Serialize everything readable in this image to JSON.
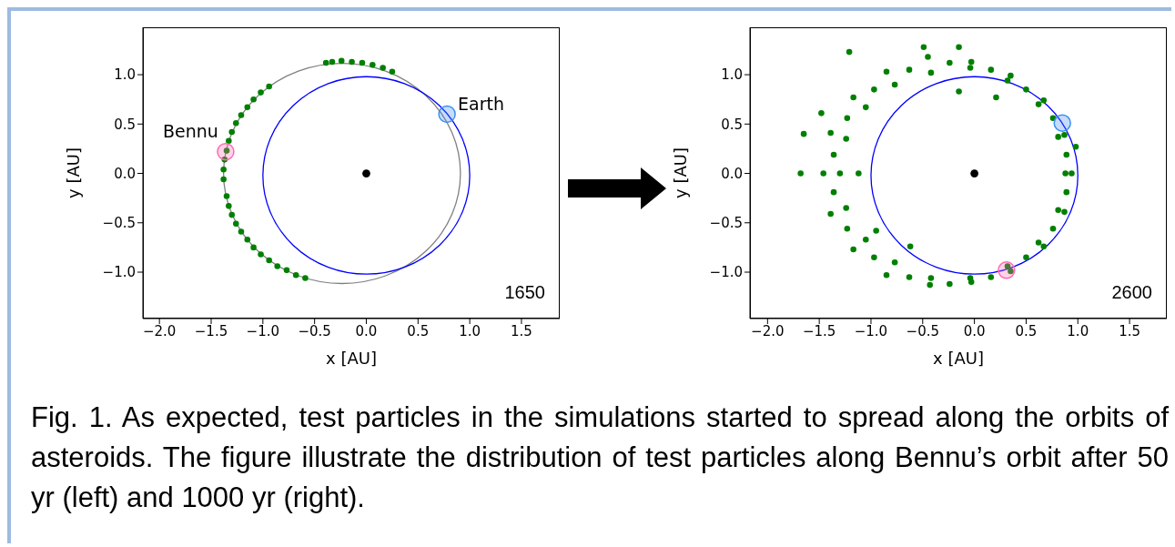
{
  "chart_data": [
    {
      "type": "scatter",
      "xlabel": "x [AU]",
      "ylabel": "y [AU]",
      "xlim": [
        -2.16,
        1.87
      ],
      "ylim": [
        -1.47,
        1.48
      ],
      "xticks": [
        {
          "value": -2,
          "label": "−2.0"
        },
        {
          "value": -1.5,
          "label": "−1.5"
        },
        {
          "value": -1,
          "label": "−1.0"
        },
        {
          "value": -0.5,
          "label": "−0.5"
        },
        {
          "value": 0,
          "label": "0.0"
        },
        {
          "value": 0.5,
          "label": "0.5"
        },
        {
          "value": 1,
          "label": "1.0"
        },
        {
          "value": 1.5,
          "label": "1.5"
        }
      ],
      "yticks": [
        {
          "value": -1,
          "label": "−1.0"
        },
        {
          "value": -0.5,
          "label": "−0.5"
        },
        {
          "value": 0,
          "label": "0.0"
        },
        {
          "value": 0.5,
          "label": "0.5"
        },
        {
          "value": 1,
          "label": "1.0"
        }
      ],
      "grid": false,
      "legend": false,
      "marker": "circle",
      "annotations": [
        "1650",
        "Fig. 1. As expected, test particles in the simulations started to spread along the orbits of asteroids. The figure illustrate the distribution of test particles along Bennu’s orbit after 50 yr (left) and 1000 yr (right)."
      ],
      "series": [
        {
          "color": "#008000",
          "x": [
            0.25,
            0.16,
            0.06,
            -0.04,
            -0.14,
            -0.24,
            -0.33,
            -0.39,
            -0.94,
            -1.02,
            -1.09,
            -1.15,
            -1.21,
            -1.26,
            -1.3,
            -1.33,
            -1.35,
            -1.37,
            -1.38,
            -1.38,
            -1.35,
            -1.33,
            -1.3,
            -1.26,
            -1.21,
            -1.15,
            -1.09,
            -1.02,
            -0.94,
            -0.86,
            -0.77,
            -0.68,
            -0.59
          ],
          "values": [
            1.03,
            1.07,
            1.1,
            1.12,
            1.13,
            1.14,
            1.13,
            1.12,
            0.88,
            0.82,
            0.75,
            0.67,
            0.59,
            0.51,
            0.42,
            0.33,
            0.23,
            0.14,
            0.04,
            -0.06,
            -0.23,
            -0.33,
            -0.42,
            -0.51,
            -0.59,
            -0.67,
            -0.75,
            -0.82,
            -0.88,
            -0.94,
            -0.98,
            -1.03,
            -1.06
          ]
        },
        {
          "color": "#000000",
          "x": [
            0
          ],
          "values": [
            0
          ]
        },
        {
          "type": "bubble",
          "name": "Earth",
          "color": "#3f8fef",
          "x": [
            0.78
          ],
          "values": [
            0.6
          ],
          "sizes": [
            1
          ]
        },
        {
          "type": "bubble",
          "name": "Bennu",
          "color": "#ff69b4",
          "x": [
            -1.36
          ],
          "values": [
            0.22
          ],
          "sizes": [
            1
          ]
        }
      ]
    },
    {
      "type": "scatter",
      "xlabel": "x [AU]",
      "ylabel": "y [AU]",
      "xlim": [
        -2.17,
        1.86
      ],
      "ylim": [
        -1.47,
        1.48
      ],
      "xticks": [
        {
          "value": -2,
          "label": "−2.0"
        },
        {
          "value": -1.5,
          "label": "−1.5"
        },
        {
          "value": -1,
          "label": "−1.0"
        },
        {
          "value": -0.5,
          "label": "−0.5"
        },
        {
          "value": 0,
          "label": "0.0"
        },
        {
          "value": 0.5,
          "label": "0.5"
        },
        {
          "value": 1,
          "label": "1.0"
        },
        {
          "value": 1.5,
          "label": "1.5"
        }
      ],
      "yticks": [
        {
          "value": -1,
          "label": "−1.0"
        },
        {
          "value": -0.5,
          "label": "−0.5"
        },
        {
          "value": 0,
          "label": "0.0"
        },
        {
          "value": 0.5,
          "label": "0.5"
        },
        {
          "value": 1,
          "label": "1.0"
        }
      ],
      "grid": false,
      "legend": false,
      "marker": "circle",
      "annotations": [
        "2600"
      ],
      "series": [
        {
          "color": "#008000",
          "x": [
            0.94,
            0.88,
            0.87,
            0.81,
            0.67,
            0.62,
            0.35,
            0.32,
            -0.03,
            -0.04,
            -0.45,
            -0.42,
            -0.85,
            -0.77,
            -1.17,
            -1.05,
            -1.39,
            -1.24,
            -1.46,
            -1.3,
            -1.39,
            -1.24,
            -1.17,
            -1.05,
            -0.85,
            -0.77,
            -0.43,
            -0.42,
            -0.03,
            -0.04,
            0.35,
            0.32,
            0.67,
            0.62,
            0.87,
            0.81,
            0.89,
            0.76,
            0.5,
            0.16,
            -0.24,
            -0.63,
            -0.97,
            -1.23,
            -1.36,
            -1.36,
            -1.23,
            -0.97,
            -0.63,
            -0.24,
            0.16,
            0.5,
            0.76,
            0.89,
            -1.65,
            -1.68,
            -1.21,
            -0.49,
            -0.15,
            -1.48,
            0.98,
            -0.62,
            -1.12,
            -0.15,
            0.21,
            -0.95
          ],
          "values": [
            0,
            0,
            0.39,
            0.37,
            0.74,
            0.7,
            0.99,
            0.94,
            1.13,
            1.07,
            1.18,
            1.02,
            1.03,
            0.9,
            0.77,
            0.67,
            0.41,
            0.35,
            0,
            0,
            -0.41,
            -0.35,
            -0.77,
            -0.67,
            -1.03,
            -0.9,
            -1.13,
            -1.06,
            -1.1,
            -1.06,
            -0.99,
            -0.94,
            -0.74,
            -0.7,
            -0.39,
            -0.37,
            0.19,
            0.56,
            0.85,
            1.05,
            1.12,
            1.05,
            0.85,
            0.56,
            0.19,
            -0.19,
            -0.56,
            -0.85,
            -1.05,
            -1.12,
            -1.05,
            -0.85,
            -0.56,
            -0.19,
            0.4,
            0,
            1.23,
            1.28,
            1.28,
            0.61,
            0.27,
            -0.74,
            0,
            0.83,
            0.77,
            -0.58
          ]
        },
        {
          "color": "#000000",
          "x": [
            0
          ],
          "values": [
            0
          ]
        },
        {
          "type": "bubble",
          "color": "#3f8fef",
          "x": [
            0.85
          ],
          "values": [
            0.51
          ],
          "sizes": [
            1
          ]
        },
        {
          "type": "bubble",
          "color": "#ff69b4",
          "x": [
            0.31
          ],
          "values": [
            -0.98
          ],
          "sizes": [
            1
          ]
        }
      ]
    }
  ]
}
